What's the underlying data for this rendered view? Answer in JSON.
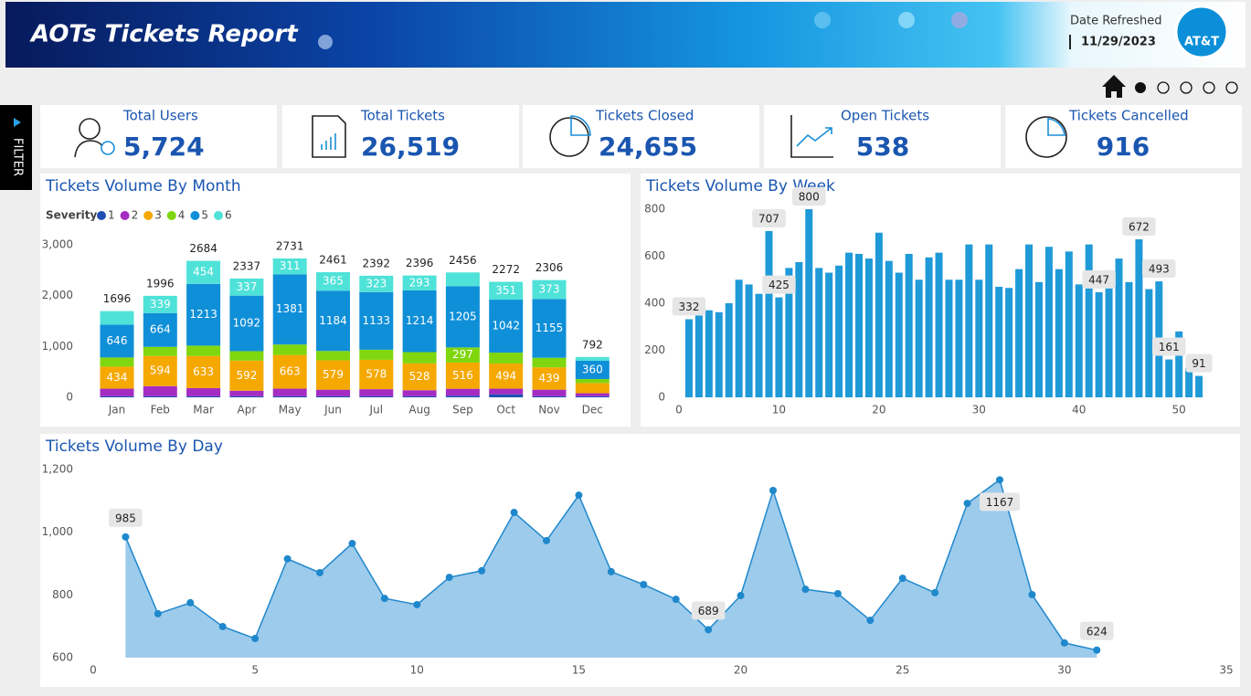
{
  "header": {
    "title": "AOTs Tickets Report",
    "date_label": "Date Refreshed",
    "date_value": "11/29/2023",
    "logo_text": "AT&T"
  },
  "filter_label": "FILTER",
  "kpis": [
    {
      "label": "Total Users",
      "value": "5,724"
    },
    {
      "label": "Total Tickets",
      "value": "26,519"
    },
    {
      "label": "Tickets Closed",
      "value": "24,655"
    },
    {
      "label": "Open Tickets",
      "value": "538"
    },
    {
      "label": "Tickets Cancelled",
      "value": "916"
    }
  ],
  "chart_data": [
    {
      "type": "stacked_bar",
      "title": "Tickets Volume By Month",
      "legend_title": "Severity",
      "categories": [
        "Jan",
        "Feb",
        "Mar",
        "Apr",
        "May",
        "Jun",
        "Jul",
        "Aug",
        "Sep",
        "Oct",
        "Nov",
        "Dec"
      ],
      "series": [
        {
          "name": "1",
          "color": "#1f4fb5",
          "values": [
            20,
            20,
            20,
            20,
            20,
            20,
            20,
            20,
            30,
            60,
            20,
            20
          ]
        },
        {
          "name": "2",
          "color": "#a42cc2",
          "values": [
            150,
            200,
            160,
            110,
            150,
            130,
            140,
            120,
            138,
            110,
            130,
            60
          ]
        },
        {
          "name": "3",
          "color": "#f5a800",
          "values": [
            434,
            594,
            633,
            592,
            663,
            579,
            578,
            528,
            516,
            494,
            439,
            200
          ]
        },
        {
          "name": "4",
          "color": "#80d60f",
          "values": [
            180,
            179,
            204,
            186,
            206,
            183,
            198,
            221,
            297,
            215,
            189,
            80
          ]
        },
        {
          "name": "5",
          "color": "#0f8fd8",
          "values": [
            646,
            664,
            1213,
            1092,
            1381,
            1184,
            1133,
            1214,
            1205,
            1042,
            1155,
            360
          ]
        },
        {
          "name": "6",
          "color": "#4fe2d8",
          "values": [
            266,
            339,
            454,
            337,
            311,
            365,
            323,
            293,
            270,
            351,
            373,
            72
          ]
        }
      ],
      "totals": [
        1696,
        1996,
        2684,
        2337,
        2731,
        2461,
        2392,
        2396,
        2456,
        2272,
        2306,
        792
      ],
      "ylim": [
        0,
        3000
      ],
      "yticks": [
        0,
        {
          "value": 1000,
          "label": "1,000"
        },
        {
          "value": 2000,
          "label": "2,000"
        },
        {
          "value": 3000,
          "label": "3,000"
        }
      ]
    },
    {
      "type": "bar",
      "title": "Tickets Volume By Week",
      "color": "#1f9ad8",
      "x": [
        1,
        2,
        3,
        4,
        5,
        6,
        7,
        8,
        9,
        10,
        11,
        12,
        13,
        14,
        15,
        16,
        17,
        18,
        19,
        20,
        21,
        22,
        23,
        24,
        25,
        26,
        27,
        28,
        29,
        30,
        31,
        32,
        33,
        34,
        35,
        36,
        37,
        38,
        39,
        40,
        41,
        42,
        43,
        44,
        45,
        46,
        47,
        48,
        49,
        50,
        51,
        52
      ],
      "values": [
        332,
        350,
        370,
        362,
        400,
        500,
        480,
        440,
        707,
        425,
        550,
        575,
        800,
        550,
        530,
        560,
        615,
        610,
        590,
        700,
        580,
        530,
        610,
        500,
        595,
        615,
        500,
        500,
        650,
        500,
        650,
        470,
        465,
        545,
        650,
        490,
        640,
        545,
        620,
        480,
        650,
        447,
        540,
        590,
        490,
        672,
        460,
        493,
        161,
        280,
        125,
        91
      ],
      "value_labels": [
        332,
        null,
        null,
        null,
        null,
        null,
        null,
        null,
        707,
        425,
        null,
        null,
        800,
        null,
        null,
        null,
        null,
        null,
        null,
        null,
        null,
        null,
        null,
        null,
        null,
        null,
        null,
        null,
        null,
        null,
        null,
        null,
        null,
        null,
        null,
        null,
        null,
        null,
        null,
        null,
        null,
        447,
        null,
        null,
        null,
        672,
        null,
        493,
        161,
        null,
        null,
        91
      ],
      "xlim": [
        0,
        53
      ],
      "xticks": [
        0,
        10,
        20,
        30,
        40,
        50
      ],
      "ylim": [
        0,
        800
      ],
      "yticks": [
        0,
        200,
        400,
        600,
        800
      ]
    },
    {
      "type": "area",
      "title": "Tickets Volume By Day",
      "color": "#1f88cc",
      "fill": "#9dcbec",
      "x": [
        1,
        2,
        3,
        4,
        5,
        6,
        7,
        8,
        9,
        10,
        11,
        12,
        13,
        14,
        15,
        16,
        17,
        18,
        19,
        20,
        21,
        22,
        23,
        24,
        25,
        26,
        27,
        28,
        29,
        30,
        31
      ],
      "values": [
        985,
        740,
        775,
        699,
        661,
        915,
        871,
        964,
        789,
        769,
        856,
        877,
        1063,
        973,
        1118,
        874,
        833,
        786,
        689,
        798,
        1133,
        818,
        804,
        719,
        853,
        807,
        1092,
        1167,
        801,
        647,
        624
      ],
      "value_labels": [
        985,
        null,
        null,
        null,
        null,
        null,
        null,
        null,
        null,
        null,
        null,
        null,
        null,
        null,
        null,
        null,
        null,
        null,
        689,
        null,
        null,
        null,
        null,
        null,
        null,
        null,
        null,
        1167,
        null,
        null,
        624
      ],
      "xlim": [
        0,
        35
      ],
      "xticks": [
        0,
        5,
        10,
        15,
        20,
        25,
        30,
        35
      ],
      "ylim": [
        600,
        1200
      ],
      "yticks": [
        {
          "value": 600,
          "label": "600"
        },
        {
          "value": 800,
          "label": "800"
        },
        {
          "value": 1000,
          "label": "1,000"
        },
        {
          "value": 1200,
          "label": "1,200"
        }
      ]
    }
  ]
}
